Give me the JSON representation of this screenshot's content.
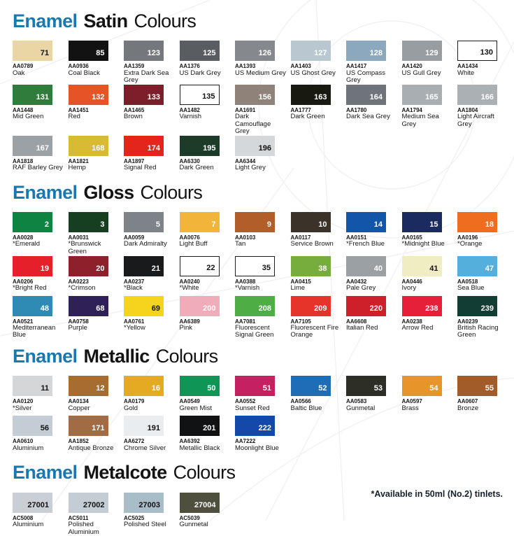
{
  "accent_blue": "#1a78b0",
  "footnote": "*Available in 50ml (No.2) tinlets.",
  "sections": [
    {
      "title_prefix": "Enamel",
      "title_finish": "Satin",
      "title_suffix": "Colours",
      "rows": [
        [
          {
            "num": "71",
            "code": "AA0789",
            "name": "Oak",
            "hex": "#e9d6a4",
            "text": "b",
            "border": false
          },
          {
            "num": "85",
            "code": "AA0936",
            "name": "Coal Black",
            "hex": "#121212",
            "text": "w",
            "border": false
          },
          {
            "num": "123",
            "code": "AA1359",
            "name": "Extra Dark Sea Grey",
            "hex": "#74777b",
            "text": "w",
            "border": false
          },
          {
            "num": "125",
            "code": "AA1376",
            "name": "US Dark Grey",
            "hex": "#595c60",
            "text": "w",
            "border": false
          },
          {
            "num": "126",
            "code": "AA1393",
            "name": "US Medium Grey",
            "hex": "#85888c",
            "text": "w",
            "border": false
          },
          {
            "num": "127",
            "code": "AA1403",
            "name": "US Ghost Grey",
            "hex": "#b9c7d1",
            "text": "w",
            "border": false
          },
          {
            "num": "128",
            "code": "AA1417",
            "name": "US Compass Grey",
            "hex": "#8ba8bf",
            "text": "w",
            "border": false
          },
          {
            "num": "129",
            "code": "AA1420",
            "name": "US Gull Grey",
            "hex": "#989da1",
            "text": "w",
            "border": false
          },
          {
            "num": "130",
            "code": "AA1434",
            "name": "White",
            "hex": "#ffffff",
            "text": "b",
            "border": true
          }
        ],
        [
          {
            "num": "131",
            "code": "AA1448",
            "name": "Mid Green",
            "hex": "#2f7c3c",
            "text": "w",
            "border": false
          },
          {
            "num": "132",
            "code": "AA1451",
            "name": "Red",
            "hex": "#e65327",
            "text": "w",
            "border": false
          },
          {
            "num": "133",
            "code": "AA1465",
            "name": "Brown",
            "hex": "#7c1f2b",
            "text": "w",
            "border": false
          },
          {
            "num": "135",
            "code": "AA1482",
            "name": "Varnish",
            "hex": "#ffffff",
            "text": "b",
            "border": true
          },
          {
            "num": "156",
            "code": "AA1691",
            "name": "Dark Camouflage Grey",
            "hex": "#8e8279",
            "text": "w",
            "border": false
          },
          {
            "num": "163",
            "code": "AA1777",
            "name": "Dark Green",
            "hex": "#181a12",
            "text": "w",
            "border": false
          },
          {
            "num": "164",
            "code": "AA1780",
            "name": "Dark Sea Grey",
            "hex": "#6e747a",
            "text": "w",
            "border": false
          },
          {
            "num": "165",
            "code": "AA1794",
            "name": "Medium Sea Grey",
            "hex": "#a9aeb2",
            "text": "w",
            "border": false
          },
          {
            "num": "166",
            "code": "AA1804",
            "name": "Light Aircraft Grey",
            "hex": "#abb0b4",
            "text": "w",
            "border": false
          }
        ],
        [
          {
            "num": "167",
            "code": "AA1818",
            "name": "RAF Barley Grey",
            "hex": "#9ca1a5",
            "text": "w",
            "border": false
          },
          {
            "num": "168",
            "code": "AA1821",
            "name": "Hemp",
            "hex": "#d8bb33",
            "text": "w",
            "border": false
          },
          {
            "num": "174",
            "code": "AA1897",
            "name": "Signal Red",
            "hex": "#e4251c",
            "text": "w",
            "border": false
          },
          {
            "num": "195",
            "code": "AA6330",
            "name": "Dark Green",
            "hex": "#1d3b29",
            "text": "w",
            "border": false
          },
          {
            "num": "196",
            "code": "AA6344",
            "name": "Light Grey",
            "hex": "#d5d8da",
            "text": "b",
            "border": false
          }
        ]
      ]
    },
    {
      "title_prefix": "Enamel",
      "title_finish": "Gloss",
      "title_suffix": "Colours",
      "rows": [
        [
          {
            "num": "2",
            "code": "AA0028",
            "name": "*Emerald",
            "hex": "#0e8440",
            "text": "w",
            "border": false
          },
          {
            "num": "3",
            "code": "AA0031",
            "name": "*Brunswick Green",
            "hex": "#153f20",
            "text": "w",
            "border": false
          },
          {
            "num": "5",
            "code": "AA0059",
            "name": "Dark Admiralty",
            "hex": "#7e8389",
            "text": "w",
            "border": false
          },
          {
            "num": "7",
            "code": "AA0076",
            "name": "Light Buff",
            "hex": "#f2b53a",
            "text": "w",
            "border": false
          },
          {
            "num": "9",
            "code": "AA0103",
            "name": "Tan",
            "hex": "#b15e28",
            "text": "w",
            "border": false
          },
          {
            "num": "10",
            "code": "AA0117",
            "name": "Service Brown",
            "hex": "#3b332a",
            "text": "w",
            "border": false
          },
          {
            "num": "14",
            "code": "AA0151",
            "name": "*French Blue",
            "hex": "#1156a8",
            "text": "w",
            "border": false
          },
          {
            "num": "15",
            "code": "AA0165",
            "name": "*Midnight Blue",
            "hex": "#1b2b5f",
            "text": "w",
            "border": false
          },
          {
            "num": "18",
            "code": "AA0196",
            "name": "*Orange",
            "hex": "#ee6d1f",
            "text": "w",
            "border": false
          }
        ],
        [
          {
            "num": "19",
            "code": "AA0206",
            "name": "*Bright Red",
            "hex": "#e6202a",
            "text": "w",
            "border": false
          },
          {
            "num": "20",
            "code": "AA0223",
            "name": "*Crimson",
            "hex": "#8e202c",
            "text": "w",
            "border": false
          },
          {
            "num": "21",
            "code": "AA0237",
            "name": "*Black",
            "hex": "#191a1c",
            "text": "w",
            "border": false
          },
          {
            "num": "22",
            "code": "AA0240",
            "name": "*White",
            "hex": "#ffffff",
            "text": "b",
            "border": true
          },
          {
            "num": "35",
            "code": "AA0388",
            "name": "*Varnish",
            "hex": "#ffffff",
            "text": "b",
            "border": true
          },
          {
            "num": "38",
            "code": "AA0415",
            "name": "Lime",
            "hex": "#77ad3d",
            "text": "w",
            "border": false
          },
          {
            "num": "40",
            "code": "AA0432",
            "name": "Pale Grey",
            "hex": "#9aa0a3",
            "text": "w",
            "border": false
          },
          {
            "num": "41",
            "code": "AA0446",
            "name": "Ivory",
            "hex": "#f1edc2",
            "text": "b",
            "border": false
          },
          {
            "num": "47",
            "code": "AA0518",
            "name": "Sea Blue",
            "hex": "#54afdd",
            "text": "w",
            "border": false
          }
        ],
        [
          {
            "num": "48",
            "code": "AA0521",
            "name": "Mediterranean Blue",
            "hex": "#2f8bb4",
            "text": "w",
            "border": false
          },
          {
            "num": "68",
            "code": "AA0758",
            "name": "Purple",
            "hex": "#2f2057",
            "text": "w",
            "border": false
          },
          {
            "num": "69",
            "code": "AA0761",
            "name": "*Yellow",
            "hex": "#f4d41c",
            "text": "b",
            "border": false
          },
          {
            "num": "200",
            "code": "AA6389",
            "name": "Pink",
            "hex": "#f1acba",
            "text": "w",
            "border": false
          },
          {
            "num": "208",
            "code": "AA7081",
            "name": "Fluorescent Signal Green",
            "hex": "#4ead45",
            "text": "w",
            "border": false
          },
          {
            "num": "209",
            "code": "AA7105",
            "name": "Fluorescent Fire Orange",
            "hex": "#e6342a",
            "text": "w",
            "border": false
          },
          {
            "num": "220",
            "code": "AA6608",
            "name": "Italian Red",
            "hex": "#cd202a",
            "text": "w",
            "border": false
          },
          {
            "num": "238",
            "code": "AA0238",
            "name": "Arrow Red",
            "hex": "#e62039",
            "text": "w",
            "border": false
          },
          {
            "num": "239",
            "code": "AA0239",
            "name": "British Racing Green",
            "hex": "#123d35",
            "text": "w",
            "border": false
          }
        ]
      ]
    },
    {
      "title_prefix": "Enamel",
      "title_finish": "Metallic",
      "title_suffix": "Colours",
      "rows": [
        [
          {
            "num": "11",
            "code": "AA0120",
            "name": "*Silver",
            "hex": "#d4d6d7",
            "text": "b",
            "border": false
          },
          {
            "num": "12",
            "code": "AA0134",
            "name": "Copper",
            "hex": "#a76c30",
            "text": "w",
            "border": false
          },
          {
            "num": "16",
            "code": "AA0179",
            "name": "Gold",
            "hex": "#e3aa22",
            "text": "w",
            "border": false
          },
          {
            "num": "50",
            "code": "AA0549",
            "name": "Green Mist",
            "hex": "#0f9656",
            "text": "w",
            "border": false
          },
          {
            "num": "51",
            "code": "AA0552",
            "name": "Sunset Red",
            "hex": "#c52060",
            "text": "w",
            "border": false
          },
          {
            "num": "52",
            "code": "AA0566",
            "name": "Baltic Blue",
            "hex": "#1f6eb5",
            "text": "w",
            "border": false
          },
          {
            "num": "53",
            "code": "AA0583",
            "name": "Gunmetal",
            "hex": "#2d2f27",
            "text": "w",
            "border": false
          },
          {
            "num": "54",
            "code": "AA0597",
            "name": "Brass",
            "hex": "#e5952a",
            "text": "w",
            "border": false
          },
          {
            "num": "55",
            "code": "AA0607",
            "name": "Bronze",
            "hex": "#a15c29",
            "text": "w",
            "border": false
          }
        ],
        [
          {
            "num": "56",
            "code": "AA0610",
            "name": "Aluminium",
            "hex": "#c4cdd5",
            "text": "b",
            "border": false
          },
          {
            "num": "171",
            "code": "AA1852",
            "name": "Antique Bronze",
            "hex": "#a16b43",
            "text": "w",
            "border": false
          },
          {
            "num": "191",
            "code": "AA6272",
            "name": "Chrome Silver",
            "hex": "#e9edef",
            "text": "b",
            "border": false
          },
          {
            "num": "201",
            "code": "AA6392",
            "name": "Metallic Black",
            "hex": "#101214",
            "text": "w",
            "border": false
          },
          {
            "num": "222",
            "code": "AA7222",
            "name": "Moonlight Blue",
            "hex": "#1549a9",
            "text": "w",
            "border": false
          }
        ]
      ]
    },
    {
      "title_prefix": "Enamel",
      "title_finish": "Metalcote",
      "title_suffix": "Colours",
      "rows": [
        [
          {
            "num": "27001",
            "code": "AC5008",
            "name": "Aluminium",
            "hex": "#c9cfd5",
            "text": "b",
            "border": false
          },
          {
            "num": "27002",
            "code": "AC5011",
            "name": "Polished Aluminium",
            "hex": "#c4ccd4",
            "text": "b",
            "border": false
          },
          {
            "num": "27003",
            "code": "AC5025",
            "name": "Polished Steel",
            "hex": "#a9bdc9",
            "text": "b",
            "border": false
          },
          {
            "num": "27004",
            "code": "AC5039",
            "name": "Gunmetal",
            "hex": "#4f4f3d",
            "text": "w",
            "border": false
          }
        ]
      ]
    }
  ]
}
